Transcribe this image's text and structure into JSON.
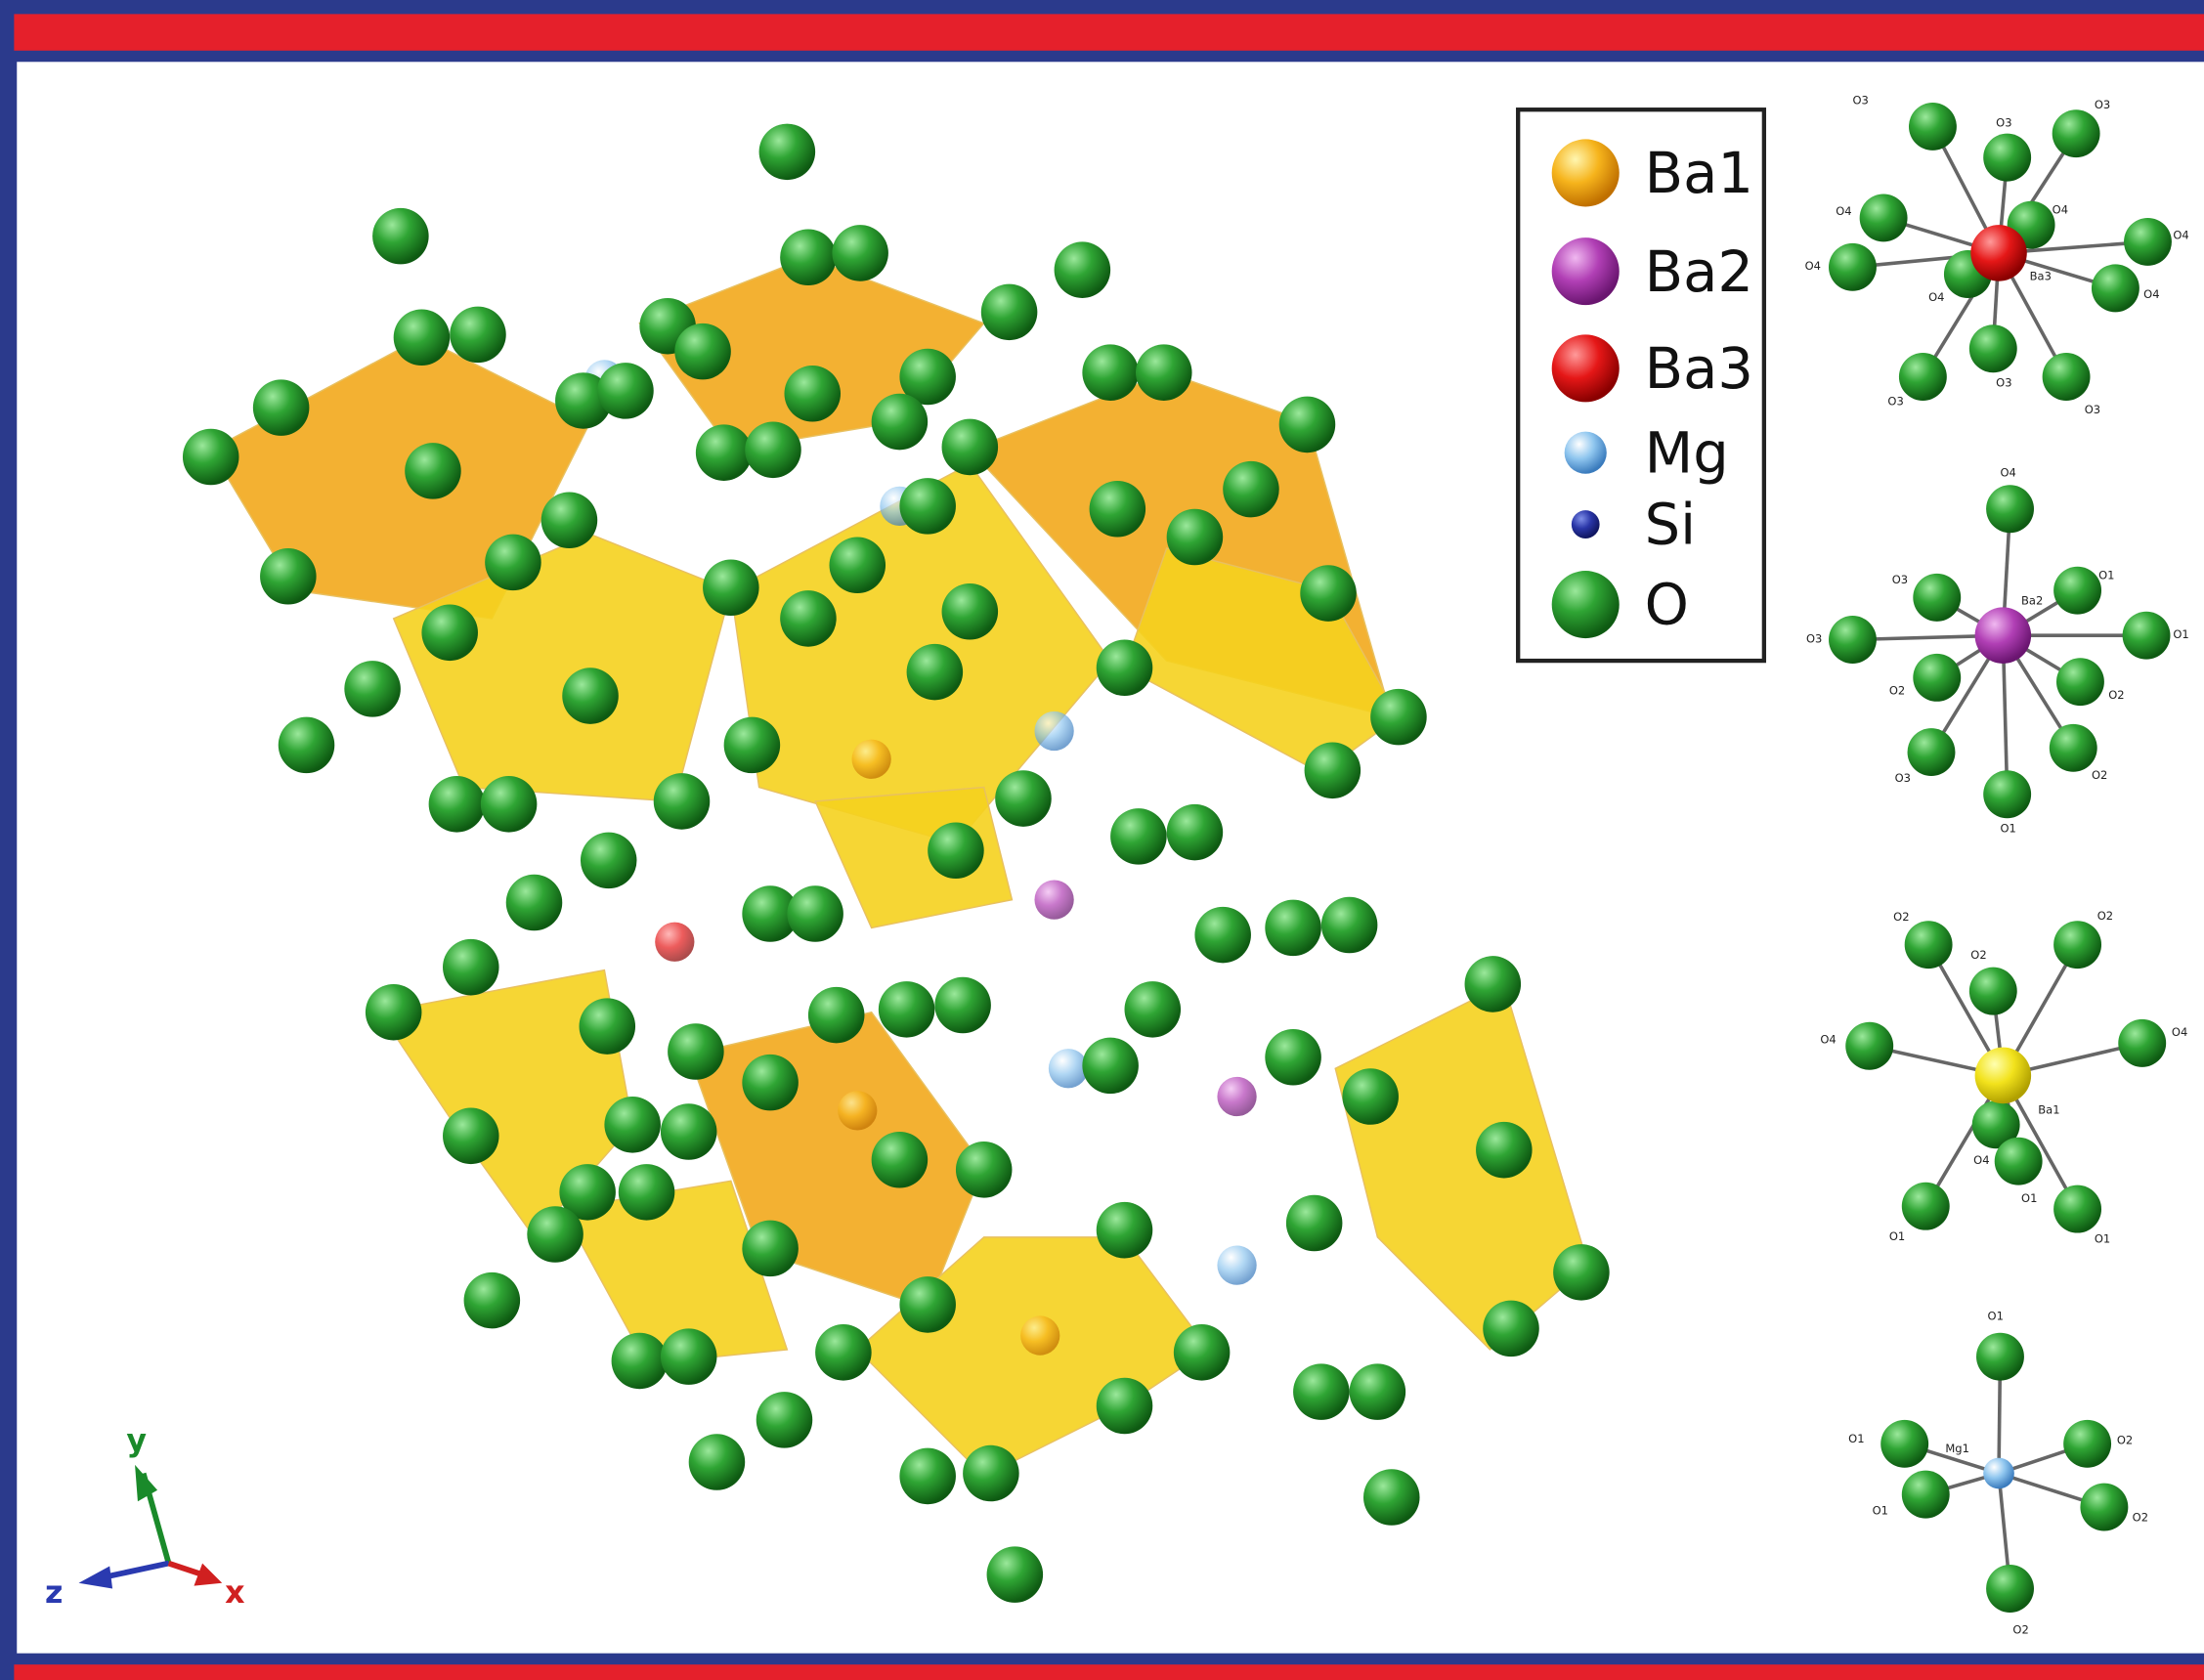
{
  "legend": {
    "items": [
      "Ba1",
      "Ba2",
      "Ba3",
      "Mg",
      "Si",
      "O"
    ]
  },
  "axes": {
    "y": "y",
    "z": "z",
    "x": "x"
  },
  "coordination": [
    {
      "labels": [
        "O3",
        "O3",
        "O3",
        "O4",
        "O4",
        "O4",
        "Ba3",
        "O4",
        "O4",
        "O4",
        "O3",
        "O3",
        "O3"
      ]
    },
    {
      "labels": [
        "O4",
        "O3",
        "O1",
        "Ba2",
        "O3",
        "O1",
        "O2",
        "O2",
        "O3",
        "O2",
        "O1"
      ]
    },
    {
      "labels": [
        "O2",
        "O2",
        "O2",
        "O4",
        "O4",
        "Ba1",
        "O4",
        "O1",
        "O1",
        "O1"
      ]
    },
    {
      "labels": [
        "O1",
        "O1",
        "Mg1",
        "O2",
        "O1",
        "O2",
        "O2"
      ]
    }
  ]
}
